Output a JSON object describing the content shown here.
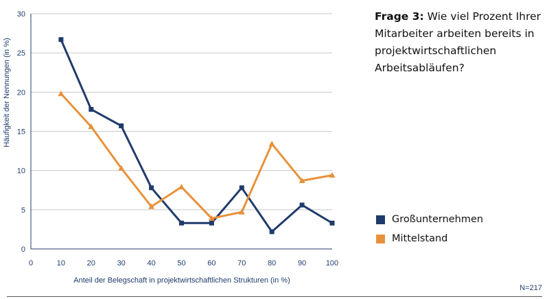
{
  "question": {
    "prefix": "Frage 3:",
    "text": "Wie viel Prozent Ihrer Mitarbeiter arbeiten bereits in projektwirtschaftlichen Arbeitsabläufen?"
  },
  "note": "N=217",
  "colors": {
    "grossunternehmen": "#1f3b6b",
    "mittelstand": "#e8913a",
    "grid": "#c8c8c8",
    "axis": "#1f3b6b"
  },
  "chart_data": {
    "type": "line",
    "xlabel": "Anteil der Belegschaft in projektwirtschaftlichen Strukturen (in %)",
    "ylabel": "Häufigkeit der Nennungen (in %)",
    "xlim": [
      0,
      100
    ],
    "ylim": [
      0,
      30
    ],
    "xticks": [
      0,
      10,
      20,
      30,
      40,
      50,
      60,
      70,
      80,
      90,
      100
    ],
    "yticks": [
      0,
      5,
      10,
      15,
      20,
      25,
      30
    ],
    "grid": true,
    "legend_position": "right",
    "x": [
      10,
      20,
      30,
      40,
      50,
      60,
      70,
      80,
      90,
      100
    ],
    "series": [
      {
        "name": "Großunternehmen",
        "marker": "square",
        "values": [
          26.7,
          17.8,
          15.7,
          7.8,
          3.3,
          3.3,
          7.8,
          2.2,
          5.6,
          3.3
        ]
      },
      {
        "name": "Mittelstand",
        "marker": "triangle",
        "values": [
          19.8,
          15.6,
          10.3,
          5.4,
          7.9,
          3.9,
          4.7,
          13.4,
          8.7,
          9.4
        ]
      }
    ]
  }
}
